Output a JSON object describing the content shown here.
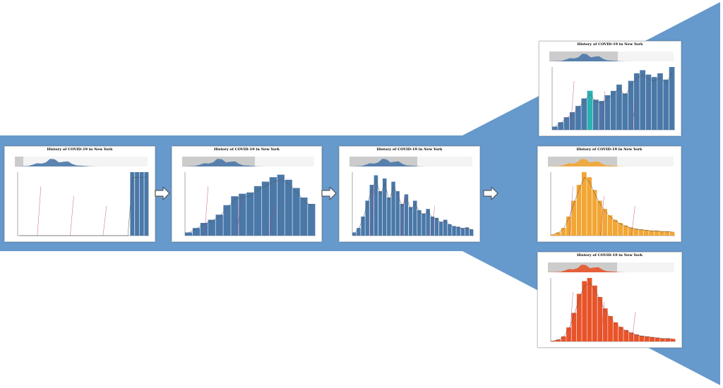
{
  "panel_title": "History of COVID-19 in New York",
  "colors": {
    "background": "#ffffff",
    "band": "#6699cc",
    "bars_blue": "#4a78a8",
    "bars_orange": "#f2a634",
    "bars_red": "#e8542a",
    "highlight": "#2bb3b3",
    "brush": "#c8c8c8",
    "annotation": "#c0307a"
  },
  "panels": [
    {
      "id": "overview-empty",
      "series": [
        0,
        0,
        0,
        0,
        0,
        0,
        0,
        0,
        0,
        0,
        0,
        0,
        0,
        0,
        0,
        0,
        0,
        0,
        0,
        0,
        0,
        0,
        0,
        0,
        1,
        1,
        1,
        1
      ]
    },
    {
      "id": "monthly-bars",
      "series": [
        0.05,
        0.12,
        0.2,
        0.25,
        0.33,
        0.48,
        0.62,
        0.66,
        0.68,
        0.78,
        0.85,
        0.92,
        0.96,
        0.88,
        0.75,
        0.6,
        0.5
      ]
    },
    {
      "id": "weekly-peak",
      "series": [
        0.05,
        0.12,
        0.3,
        0.55,
        0.8,
        0.95,
        0.7,
        0.9,
        0.6,
        0.85,
        0.7,
        0.5,
        0.65,
        0.45,
        0.55,
        0.4,
        0.35,
        0.42,
        0.3,
        0.28,
        0.22,
        0.25,
        0.18,
        0.15,
        0.14,
        0.12,
        0.13,
        0.1
      ]
    },
    {
      "id": "zoom-highlight",
      "series": [
        0.05,
        0.12,
        0.2,
        0.28,
        0.38,
        0.5,
        0.62,
        0.48,
        0.46,
        0.55,
        0.62,
        0.72,
        0.58,
        0.78,
        0.9,
        0.95,
        0.88,
        0.84,
        0.9,
        0.8,
        1.0
      ]
    },
    {
      "id": "daily-orange",
      "series": [
        0.02,
        0.05,
        0.12,
        0.3,
        0.55,
        0.8,
        1.0,
        0.92,
        0.72,
        0.55,
        0.42,
        0.32,
        0.25,
        0.2,
        0.16,
        0.13,
        0.11,
        0.1,
        0.09,
        0.08,
        0.08,
        0.07,
        0.07,
        0.06
      ]
    },
    {
      "id": "daily-red",
      "series": [
        0.01,
        0.03,
        0.08,
        0.22,
        0.45,
        0.75,
        0.95,
        1.0,
        0.88,
        0.7,
        0.52,
        0.4,
        0.3,
        0.23,
        0.18,
        0.14,
        0.11,
        0.09,
        0.08,
        0.07,
        0.06,
        0.05,
        0.05,
        0.04
      ]
    }
  ]
}
